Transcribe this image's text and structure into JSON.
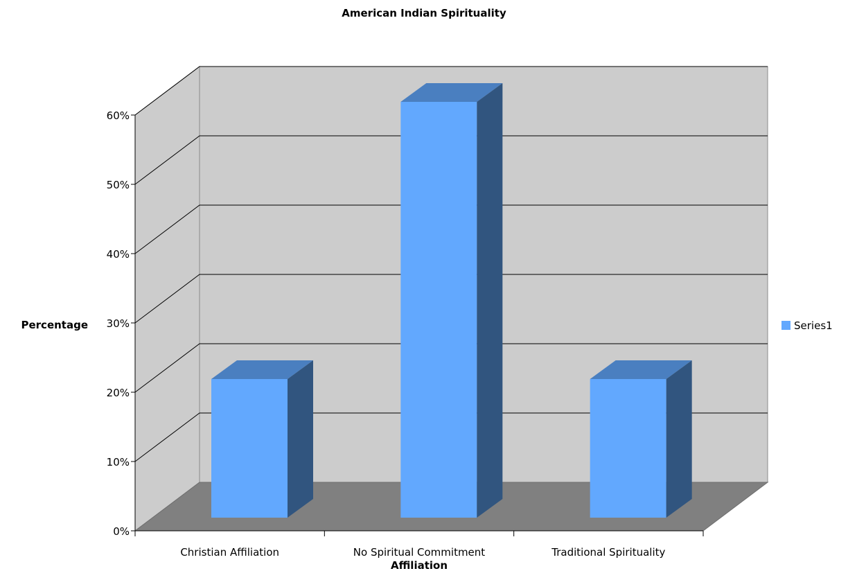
{
  "chart_data": {
    "type": "bar",
    "title": "American Indian Spirituality",
    "xlabel": "Affiliation",
    "ylabel": "Percentage",
    "categories": [
      "Christian Affiliation",
      "No Spiritual Commitment",
      "Traditional Spirituality"
    ],
    "series": [
      {
        "name": "Series1",
        "values": [
          20,
          60,
          20
        ]
      }
    ],
    "ylim": [
      0,
      60
    ],
    "yticks": [
      0,
      10,
      20,
      30,
      40,
      50,
      60
    ],
    "ytick_format": "percent",
    "grid": true,
    "legend_position": "right",
    "three_d": true,
    "colors": {
      "bar_front": "#62a8fe",
      "bar_top": "#4a7fc0",
      "bar_side": "#31557f",
      "back_wall": "#cccccc",
      "side_wall": "#cccccc",
      "floor": "#808080",
      "gridline": "#000000",
      "axis": "#000000"
    }
  }
}
